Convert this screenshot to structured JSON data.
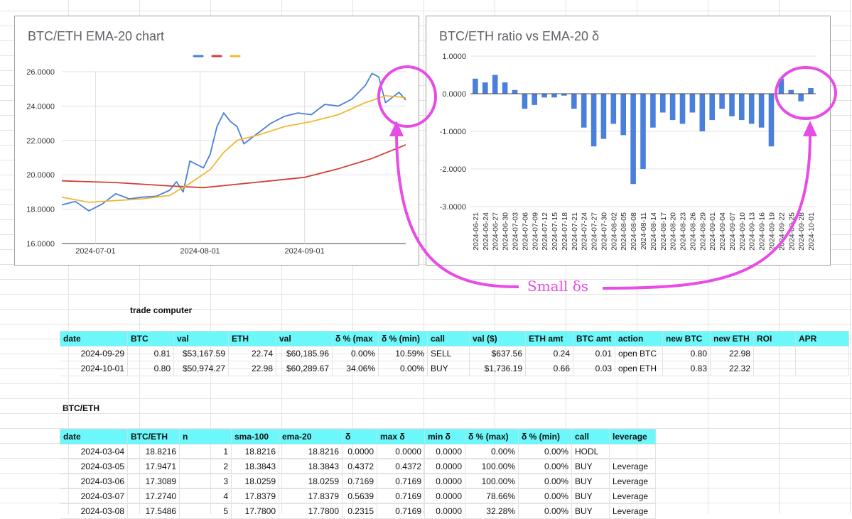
{
  "chart_data": [
    {
      "type": "line",
      "title": "BTC/ETH EMA-20 chart",
      "legend": "top-center",
      "grid": true,
      "x_ticks": [
        "2024-07-01",
        "2024-08-01",
        "2024-09-01"
      ],
      "y_ticks": [
        "16.0000",
        "18.0000",
        "20.0000",
        "22.0000",
        "24.0000",
        "26.0000"
      ],
      "ylim": [
        16,
        26
      ],
      "x_range": [
        "2024-06-21",
        "2024-10-01"
      ],
      "series": [
        {
          "color": "#4a7fdc",
          "x": [
            "2024-06-21",
            "2024-06-25",
            "2024-06-29",
            "2024-07-03",
            "2024-07-07",
            "2024-07-11",
            "2024-07-15",
            "2024-07-19",
            "2024-07-23",
            "2024-07-25",
            "2024-07-27",
            "2024-07-29",
            "2024-08-02",
            "2024-08-04",
            "2024-08-06",
            "2024-08-08",
            "2024-08-10",
            "2024-08-12",
            "2024-08-14",
            "2024-08-18",
            "2024-08-22",
            "2024-08-26",
            "2024-08-30",
            "2024-09-03",
            "2024-09-07",
            "2024-09-11",
            "2024-09-15",
            "2024-09-19",
            "2024-09-21",
            "2024-09-23",
            "2024-09-25",
            "2024-09-27",
            "2024-09-29",
            "2024-10-01"
          ],
          "values": [
            18.25,
            18.45,
            17.9,
            18.3,
            18.9,
            18.6,
            18.7,
            18.75,
            19.1,
            19.6,
            19.0,
            20.8,
            20.4,
            21.2,
            22.8,
            23.6,
            23.1,
            22.8,
            21.8,
            22.4,
            23.0,
            23.4,
            23.6,
            23.5,
            24.1,
            24.0,
            24.4,
            25.2,
            25.9,
            25.7,
            24.2,
            24.5,
            24.8,
            24.35
          ]
        },
        {
          "color": "#d23f31",
          "x": [
            "2024-06-21",
            "2024-07-07",
            "2024-07-23",
            "2024-08-02",
            "2024-08-12",
            "2024-08-22",
            "2024-09-01",
            "2024-09-11",
            "2024-09-21",
            "2024-10-01"
          ],
          "values": [
            19.65,
            19.55,
            19.35,
            19.25,
            19.45,
            19.65,
            19.85,
            20.35,
            20.95,
            21.75
          ]
        },
        {
          "color": "#f1b830",
          "x": [
            "2024-06-21",
            "2024-06-29",
            "2024-07-07",
            "2024-07-15",
            "2024-07-23",
            "2024-07-29",
            "2024-08-04",
            "2024-08-08",
            "2024-08-12",
            "2024-08-18",
            "2024-08-26",
            "2024-09-03",
            "2024-09-11",
            "2024-09-19",
            "2024-09-25",
            "2024-10-01"
          ],
          "values": [
            18.7,
            18.4,
            18.5,
            18.6,
            18.8,
            19.5,
            20.3,
            21.3,
            22.0,
            22.3,
            22.8,
            23.1,
            23.5,
            24.2,
            24.6,
            24.5
          ]
        }
      ]
    },
    {
      "type": "bar",
      "title": "BTC/ETH ratio vs EMA-20 δ",
      "grid": true,
      "y_ticks": [
        "1.0000",
        "0.0000",
        "-1.0000",
        "-2.0000",
        "-3.0000"
      ],
      "ylim": [
        -3,
        1
      ],
      "bar_color": "#4a7fdc",
      "categories": [
        "2024-06-21",
        "2024-06-24",
        "2024-06-27",
        "2024-06-30",
        "2024-07-03",
        "2024-07-06",
        "2024-07-09",
        "2024-07-12",
        "2024-07-15",
        "2024-07-18",
        "2024-07-21",
        "2024-07-24",
        "2024-07-27",
        "2024-07-30",
        "2024-08-02",
        "2024-08-05",
        "2024-08-08",
        "2024-08-11",
        "2024-08-14",
        "2024-08-17",
        "2024-08-20",
        "2024-08-23",
        "2024-08-26",
        "2024-08-29",
        "2024-09-01",
        "2024-09-04",
        "2024-09-07",
        "2024-09-10",
        "2024-09-13",
        "2024-09-16",
        "2024-09-19",
        "2024-09-22",
        "2024-09-25",
        "2024-09-28",
        "2024-10-01"
      ],
      "values": [
        0.4,
        0.3,
        0.5,
        0.3,
        0.1,
        -0.4,
        -0.3,
        -0.1,
        -0.1,
        -0.05,
        -0.4,
        -0.9,
        -1.4,
        -1.2,
        -0.8,
        -1.1,
        -2.4,
        -2.0,
        -0.9,
        -0.5,
        -0.7,
        -0.8,
        -0.5,
        -1.0,
        -0.7,
        -0.4,
        -0.6,
        -0.7,
        -0.8,
        -0.9,
        -1.4,
        0.4,
        0.1,
        -0.2,
        0.15
      ]
    }
  ],
  "annotation": {
    "text": "Small δs",
    "color": "#e84ce6"
  },
  "trade": {
    "label": "trade computer",
    "headers": [
      "date",
      "BTC",
      "val",
      "ETH",
      "val",
      "δ % (max",
      "δ % (min)",
      "call",
      "val ($)",
      "ETH amt",
      "BTC amt",
      "action",
      "new BTC",
      "new ETH",
      "ROI",
      "APR"
    ],
    "rows": [
      [
        "2024-09-29",
        "0.81",
        "$53,167.59",
        "22.74",
        "$60,185.96",
        "0.00%",
        "10.59%",
        "SELL",
        "$637.56",
        "0.24",
        "0.01",
        "open BTC",
        "0.80",
        "22.98",
        "",
        ""
      ],
      [
        "2024-10-01",
        "0.80",
        "$50,974.27",
        "22.98",
        "$60,289.67",
        "34.06%",
        "0.00%",
        "BUY",
        "$1,736.19",
        "0.66",
        "0.03",
        "open ETH",
        "0.83",
        "22.32",
        "",
        ""
      ]
    ]
  },
  "btceth": {
    "label": "BTC/ETH",
    "headers": [
      "date",
      "BTC/ETH",
      "n",
      "sma-100",
      "ema-20",
      "δ",
      "max δ",
      "min δ",
      "δ % (max)",
      "δ % (min)",
      "call",
      "leverage"
    ],
    "rows": [
      [
        "2024-03-04",
        "18.8216",
        "1",
        "18.8216",
        "18.8216",
        "0.0000",
        "0.0000",
        "0.0000",
        "0.00%",
        "0.00%",
        "HODL",
        ""
      ],
      [
        "2024-03-05",
        "17.9471",
        "2",
        "18.3843",
        "18.3843",
        "0.4372",
        "0.4372",
        "0.0000",
        "100.00%",
        "0.00%",
        "BUY",
        "Leverage"
      ],
      [
        "2024-03-06",
        "17.3089",
        "3",
        "18.0259",
        "18.0259",
        "0.7169",
        "0.7169",
        "0.0000",
        "100.00%",
        "0.00%",
        "BUY",
        "Leverage"
      ],
      [
        "2024-03-07",
        "17.2740",
        "4",
        "17.8379",
        "17.8379",
        "0.5639",
        "0.7169",
        "0.0000",
        "78.66%",
        "0.00%",
        "BUY",
        "Leverage"
      ],
      [
        "2024-03-08",
        "17.5486",
        "5",
        "17.7800",
        "17.7800",
        "0.2315",
        "0.7169",
        "0.0000",
        "32.28%",
        "0.00%",
        "BUY",
        "Leverage"
      ]
    ]
  }
}
